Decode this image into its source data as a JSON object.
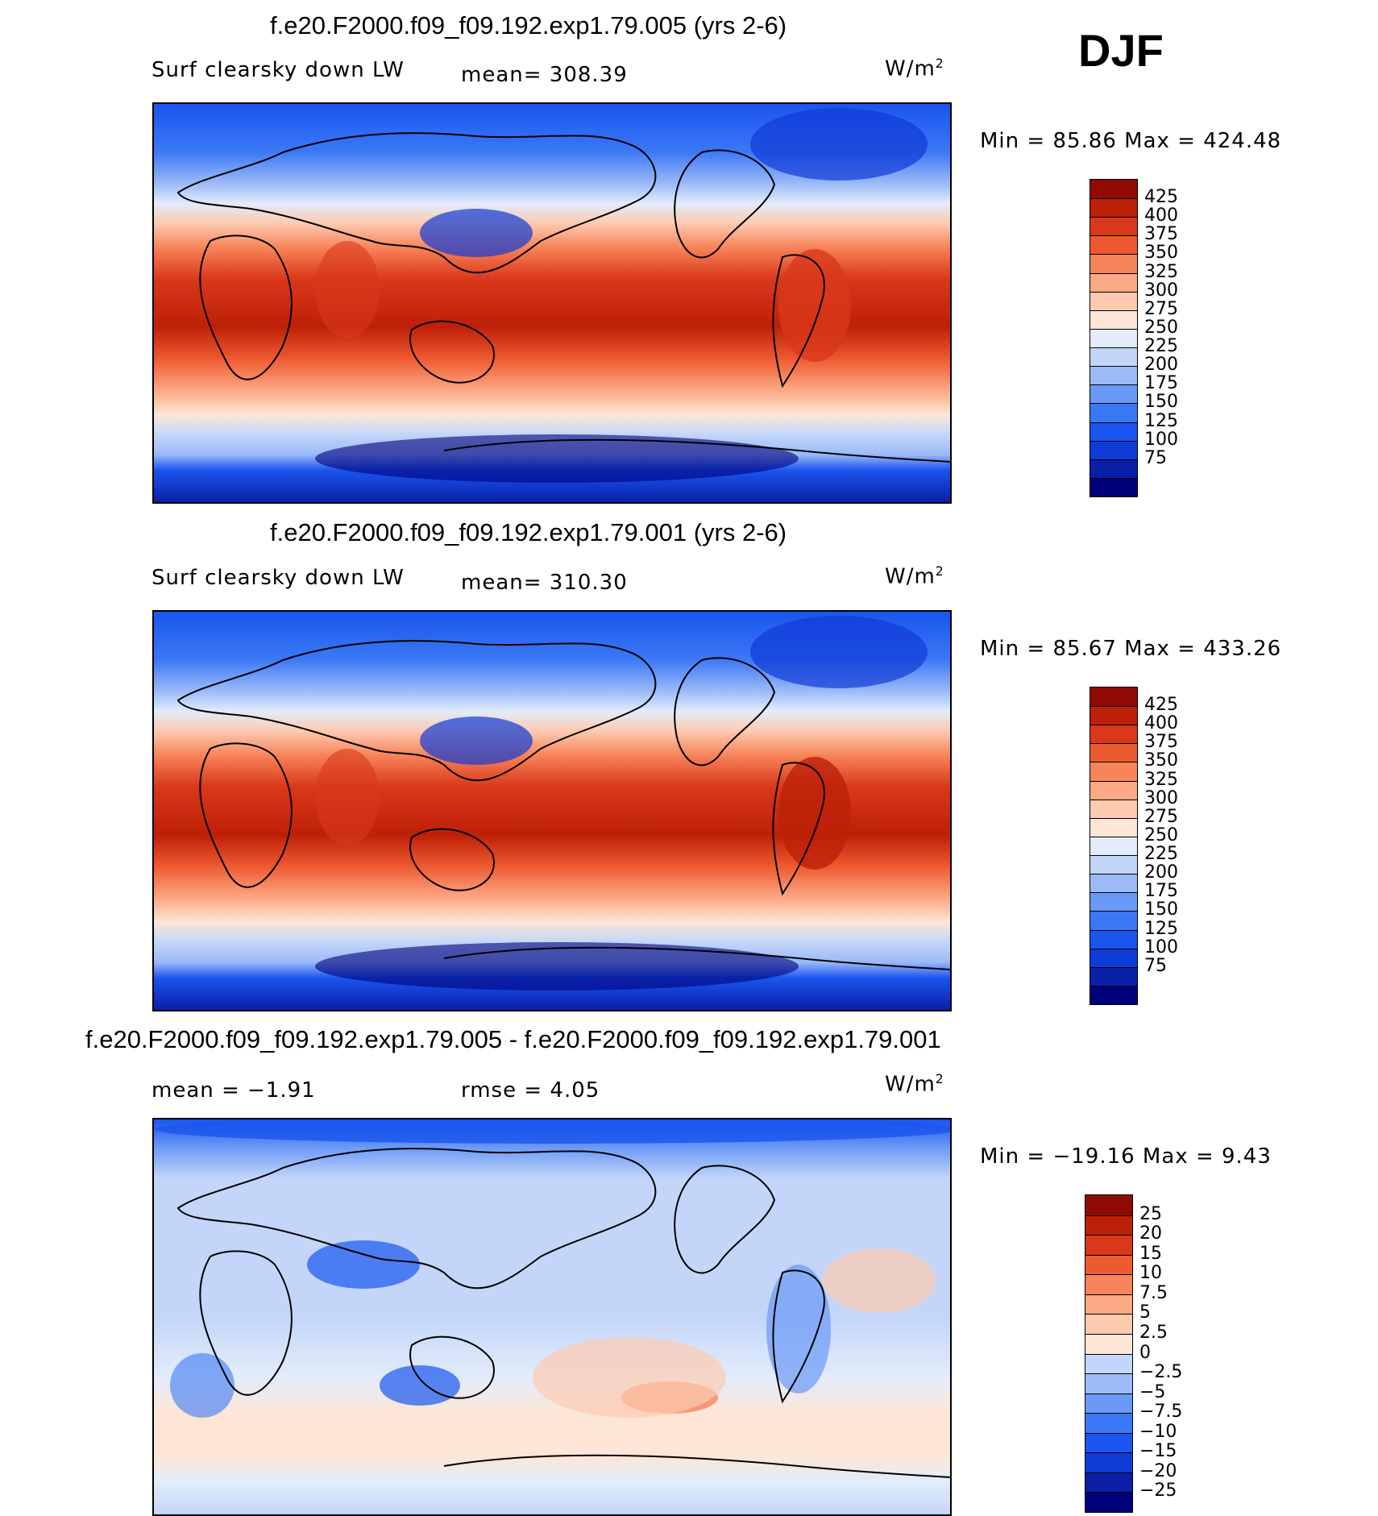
{
  "season": "DJF",
  "units": "W/m²",
  "colors": {
    "abs_scale": [
      "#00007a",
      "#0a1fa8",
      "#0f3bd6",
      "#1a55ee",
      "#3b78f5",
      "#6b99f7",
      "#9cbaf8",
      "#c3d6f9",
      "#e2ecfb",
      "#fde6d6",
      "#fdcab0",
      "#fca985",
      "#f8845a",
      "#ee5a30",
      "#d9381a",
      "#bd2008",
      "#8f0a02"
    ],
    "diff_scale": [
      "#00007a",
      "#0a1fa8",
      "#0f3bd6",
      "#1a55ee",
      "#3b78f5",
      "#6b99f7",
      "#9cbaf8",
      "#c3d6f9",
      "#fde6d6",
      "#fdcab0",
      "#fca985",
      "#f8845a",
      "#ee5a30",
      "#d9381a",
      "#bd2008",
      "#8f0a02"
    ]
  },
  "chart_data": [
    {
      "type": "heatmap",
      "title": "f.e20.F2000.f09_f09.192.exp1.79.005 (yrs 2-6)",
      "variable": "Surf clearsky down LW",
      "mean_label": "mean=  308.39",
      "stats_label": "Min =   85.86 Max =  424.48",
      "mean": 308.39,
      "min": 85.86,
      "max": 424.48,
      "levels": [
        "425",
        "400",
        "375",
        "350",
        "325",
        "300",
        "275",
        "250",
        "225",
        "200",
        "175",
        "150",
        "125",
        "100",
        "75"
      ]
    },
    {
      "type": "heatmap",
      "title": "f.e20.F2000.f09_f09.192.exp1.79.001 (yrs 2-6)",
      "variable": "Surf clearsky down LW",
      "mean_label": "mean=  310.30",
      "stats_label": "Min =   85.67 Max =  433.26",
      "mean": 310.3,
      "min": 85.67,
      "max": 433.26,
      "levels": [
        "425",
        "400",
        "375",
        "350",
        "325",
        "300",
        "275",
        "250",
        "225",
        "200",
        "175",
        "150",
        "125",
        "100",
        "75"
      ]
    },
    {
      "type": "heatmap",
      "title": "f.e20.F2000.f09_f09.192.exp1.79.005 - f.e20.F2000.f09_f09.192.exp1.79.001",
      "mean_label": "mean =   −1.91",
      "rmse_label": "rmse =     4.05",
      "stats_label": "Min = −19.16 Max =    9.43",
      "mean": -1.91,
      "rmse": 4.05,
      "min": -19.16,
      "max": 9.43,
      "levels": [
        "25",
        "20",
        "15",
        "10",
        "7.5",
        "5",
        "2.5",
        "0",
        "−2.5",
        "−5",
        "−7.5",
        "−10",
        "−15",
        "−20",
        "−25"
      ]
    }
  ]
}
